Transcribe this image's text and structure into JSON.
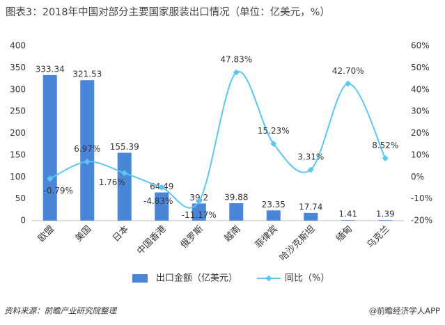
{
  "chart_data": {
    "type": "bar-line",
    "title": "图表3：2018年中国对部分主要国家服装出口情况（单位：亿美元，%）",
    "categories": [
      "欧盟",
      "美国",
      "日本",
      "中国香港",
      "俄罗斯",
      "越南",
      "菲律宾",
      "哈沙克斯坦",
      "缅甸",
      "乌克兰"
    ],
    "series": [
      {
        "name": "出口金额（亿美元）",
        "type": "bar",
        "color": "#4a86d8",
        "values": [
          333.34,
          321.53,
          155.39,
          64.49,
          39.2,
          39.88,
          23.35,
          17.74,
          1.41,
          1.39
        ]
      },
      {
        "name": "同比（%）",
        "type": "line",
        "axis": "y2",
        "color": "#5cc6f2",
        "values": [
          -0.79,
          6.97,
          1.76,
          -4.83,
          -11.17,
          47.83,
          15.23,
          3.31,
          42.7,
          8.52
        ],
        "value_labels": [
          "-0.79%",
          "6.97%",
          "1.76%",
          "-4.83%",
          "-11.17%",
          "47.83%",
          "15.23%",
          "3.31%",
          "42.70%",
          "8.52%"
        ]
      }
    ],
    "ylim": [
      0,
      400
    ],
    "yticks": [
      0,
      50,
      100,
      150,
      200,
      250,
      300,
      350,
      400
    ],
    "y2lim": [
      -20,
      60
    ],
    "y2ticks": [
      {
        "value": -20,
        "label": "-20%"
      },
      {
        "value": -10,
        "label": "-10%"
      },
      {
        "value": 0,
        "label": "0%"
      },
      {
        "value": 10,
        "label": "10%"
      },
      {
        "value": 20,
        "label": "20%"
      },
      {
        "value": 30,
        "label": "30%"
      },
      {
        "value": 40,
        "label": "40%"
      },
      {
        "value": 50,
        "label": "50%"
      },
      {
        "value": 60,
        "label": "60%"
      }
    ],
    "source": "资料来源：前瞻产业研究院整理",
    "credit": "@前瞻经济学人APP"
  }
}
